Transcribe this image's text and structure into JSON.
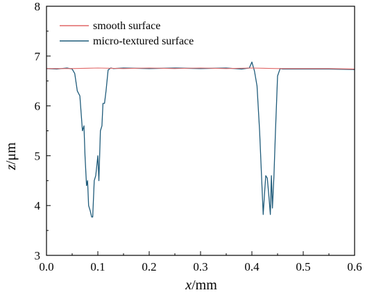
{
  "chart_data": {
    "type": "line",
    "xlabel_var": "x",
    "xlabel_unit": "/mm",
    "ylabel_var": "z",
    "ylabel_unit": "/μm",
    "xlim": [
      0.0,
      0.6
    ],
    "ylim": [
      3,
      8
    ],
    "xticks": [
      "0.0",
      "0.1",
      "0.2",
      "0.3",
      "0.4",
      "0.5",
      "0.6"
    ],
    "yticks": [
      "3",
      "4",
      "5",
      "6",
      "7",
      "8"
    ],
    "grid": false,
    "legend_position": "top-left",
    "series": [
      {
        "name": "smooth surface",
        "color": "#e06666",
        "x": [
          0.0,
          0.05,
          0.1,
          0.15,
          0.2,
          0.25,
          0.3,
          0.35,
          0.4,
          0.45,
          0.5,
          0.55,
          0.6
        ],
        "y": [
          6.75,
          6.75,
          6.76,
          6.75,
          6.76,
          6.75,
          6.76,
          6.75,
          6.76,
          6.75,
          6.75,
          6.75,
          6.74
        ]
      },
      {
        "name": "micro-textured surface",
        "color": "#1f5b7a",
        "x": [
          0.0,
          0.02,
          0.04,
          0.05,
          0.055,
          0.06,
          0.065,
          0.07,
          0.073,
          0.075,
          0.078,
          0.08,
          0.082,
          0.085,
          0.088,
          0.09,
          0.093,
          0.096,
          0.1,
          0.102,
          0.105,
          0.108,
          0.11,
          0.113,
          0.116,
          0.12,
          0.125,
          0.13,
          0.15,
          0.2,
          0.25,
          0.3,
          0.35,
          0.38,
          0.395,
          0.4,
          0.405,
          0.41,
          0.415,
          0.42,
          0.422,
          0.425,
          0.427,
          0.43,
          0.433,
          0.436,
          0.438,
          0.44,
          0.443,
          0.446,
          0.45,
          0.455,
          0.46,
          0.48,
          0.5,
          0.55,
          0.6
        ],
        "y": [
          6.75,
          6.74,
          6.76,
          6.74,
          6.65,
          6.3,
          6.2,
          5.5,
          5.6,
          5.0,
          4.4,
          4.5,
          4.0,
          3.9,
          3.77,
          3.77,
          4.5,
          4.6,
          5.0,
          4.5,
          5.5,
          5.6,
          6.05,
          6.05,
          6.3,
          6.72,
          6.76,
          6.75,
          6.76,
          6.75,
          6.76,
          6.75,
          6.76,
          6.74,
          6.76,
          6.88,
          6.7,
          6.4,
          5.5,
          4.3,
          3.82,
          4.3,
          4.6,
          4.55,
          4.2,
          3.82,
          4.6,
          3.95,
          4.6,
          5.5,
          6.6,
          6.75,
          6.74,
          6.74,
          6.74,
          6.74,
          6.73
        ]
      }
    ]
  }
}
